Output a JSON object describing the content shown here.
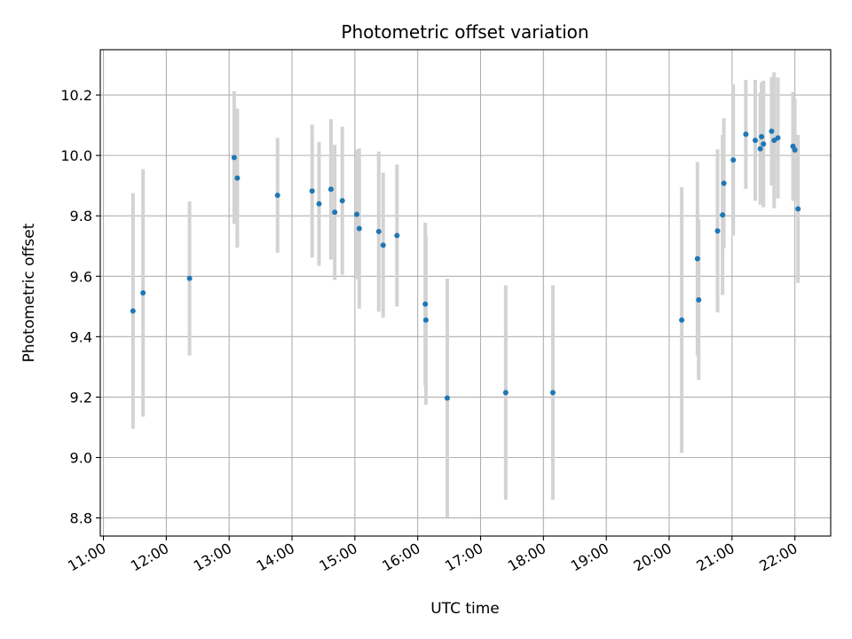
{
  "chart_data": {
    "type": "scatter",
    "title": "Photometric offset variation",
    "xlabel": "UTC time",
    "ylabel": "Photometric offset",
    "x_unit": "hours (UTC)",
    "xlim": [
      10.95,
      22.57
    ],
    "ylim": [
      8.74,
      10.35
    ],
    "grid": true,
    "x_ticks": [
      {
        "value": 11,
        "label": "11:00"
      },
      {
        "value": 12,
        "label": "12:00"
      },
      {
        "value": 13,
        "label": "13:00"
      },
      {
        "value": 14,
        "label": "14:00"
      },
      {
        "value": 15,
        "label": "15:00"
      },
      {
        "value": 16,
        "label": "16:00"
      },
      {
        "value": 17,
        "label": "17:00"
      },
      {
        "value": 18,
        "label": "18:00"
      },
      {
        "value": 19,
        "label": "19:00"
      },
      {
        "value": 20,
        "label": "20:00"
      },
      {
        "value": 21,
        "label": "21:00"
      },
      {
        "value": 22,
        "label": "22:00"
      }
    ],
    "y_ticks": [
      {
        "value": 8.8,
        "label": "8.8"
      },
      {
        "value": 9.0,
        "label": "9.0"
      },
      {
        "value": 9.2,
        "label": "9.2"
      },
      {
        "value": 9.4,
        "label": "9.4"
      },
      {
        "value": 9.6,
        "label": "9.6"
      },
      {
        "value": 9.8,
        "label": "9.8"
      },
      {
        "value": 10.0,
        "label": "10.0"
      },
      {
        "value": 10.2,
        "label": "10.2"
      }
    ],
    "marker_color": "#1f77b4",
    "errorbar_color": "#d3d3d3",
    "points": [
      {
        "x": 11.47,
        "y": 9.485,
        "lo": 9.095,
        "hi": 9.875
      },
      {
        "x": 11.63,
        "y": 9.545,
        "lo": 9.135,
        "hi": 9.955
      },
      {
        "x": 12.37,
        "y": 9.593,
        "lo": 9.338,
        "hi": 9.848
      },
      {
        "x": 13.08,
        "y": 9.993,
        "lo": 9.773,
        "hi": 10.213
      },
      {
        "x": 13.13,
        "y": 9.925,
        "lo": 9.695,
        "hi": 10.155
      },
      {
        "x": 13.77,
        "y": 9.868,
        "lo": 9.678,
        "hi": 10.058
      },
      {
        "x": 14.32,
        "y": 9.882,
        "lo": 9.662,
        "hi": 10.102
      },
      {
        "x": 14.43,
        "y": 9.84,
        "lo": 9.635,
        "hi": 10.045
      },
      {
        "x": 14.62,
        "y": 9.888,
        "lo": 9.655,
        "hi": 10.12
      },
      {
        "x": 14.68,
        "y": 9.812,
        "lo": 9.588,
        "hi": 10.035
      },
      {
        "x": 14.8,
        "y": 9.85,
        "lo": 9.605,
        "hi": 10.095
      },
      {
        "x": 15.03,
        "y": 9.805,
        "lo": 9.59,
        "hi": 10.02
      },
      {
        "x": 15.07,
        "y": 9.758,
        "lo": 9.493,
        "hi": 10.023
      },
      {
        "x": 15.38,
        "y": 9.748,
        "lo": 9.483,
        "hi": 10.013
      },
      {
        "x": 15.45,
        "y": 9.703,
        "lo": 9.463,
        "hi": 9.943
      },
      {
        "x": 15.67,
        "y": 9.735,
        "lo": 9.5,
        "hi": 9.97
      },
      {
        "x": 16.12,
        "y": 9.508,
        "lo": 9.238,
        "hi": 9.778
      },
      {
        "x": 16.13,
        "y": 9.455,
        "lo": 9.175,
        "hi": 9.735
      },
      {
        "x": 16.47,
        "y": 9.197,
        "lo": 8.802,
        "hi": 9.592
      },
      {
        "x": 17.4,
        "y": 9.215,
        "lo": 8.86,
        "hi": 9.57
      },
      {
        "x": 18.15,
        "y": 9.215,
        "lo": 8.86,
        "hi": 9.57
      },
      {
        "x": 20.2,
        "y": 9.455,
        "lo": 9.015,
        "hi": 9.895
      },
      {
        "x": 20.45,
        "y": 9.658,
        "lo": 9.338,
        "hi": 9.978
      },
      {
        "x": 20.47,
        "y": 9.522,
        "lo": 9.257,
        "hi": 9.787
      },
      {
        "x": 20.77,
        "y": 9.75,
        "lo": 9.48,
        "hi": 10.02
      },
      {
        "x": 20.85,
        "y": 9.803,
        "lo": 9.538,
        "hi": 10.068
      },
      {
        "x": 20.87,
        "y": 9.908,
        "lo": 9.693,
        "hi": 10.123
      },
      {
        "x": 21.02,
        "y": 9.985,
        "lo": 9.735,
        "hi": 10.235
      },
      {
        "x": 21.22,
        "y": 10.07,
        "lo": 9.89,
        "hi": 10.25
      },
      {
        "x": 21.37,
        "y": 10.05,
        "lo": 9.85,
        "hi": 10.25
      },
      {
        "x": 21.45,
        "y": 10.022,
        "lo": 9.837,
        "hi": 10.207
      },
      {
        "x": 21.47,
        "y": 10.062,
        "lo": 9.882,
        "hi": 10.242
      },
      {
        "x": 21.5,
        "y": 10.038,
        "lo": 9.828,
        "hi": 10.248
      },
      {
        "x": 21.63,
        "y": 10.08,
        "lo": 9.9,
        "hi": 10.26
      },
      {
        "x": 21.67,
        "y": 10.05,
        "lo": 9.825,
        "hi": 10.275
      },
      {
        "x": 21.73,
        "y": 10.058,
        "lo": 9.858,
        "hi": 10.258
      },
      {
        "x": 21.97,
        "y": 10.03,
        "lo": 9.85,
        "hi": 10.21
      },
      {
        "x": 22.0,
        "y": 10.018,
        "lo": 9.848,
        "hi": 10.188
      },
      {
        "x": 22.05,
        "y": 9.823,
        "lo": 9.578,
        "hi": 10.068
      }
    ]
  }
}
